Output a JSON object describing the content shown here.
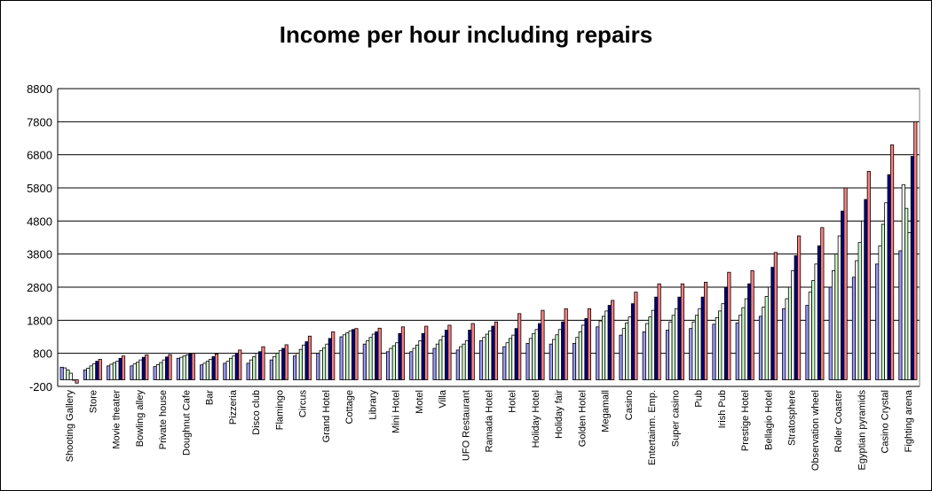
{
  "chart_data": {
    "type": "bar",
    "title": "Income per hour including repairs",
    "xlabel": "",
    "ylabel": "",
    "ylim": [
      -200,
      8800
    ],
    "yticks": [
      -200,
      800,
      1800,
      2800,
      3800,
      4800,
      5800,
      6800,
      7800,
      8800
    ],
    "grid": true,
    "legend": "none",
    "series_colors": [
      "#9999ff",
      "#ffffff",
      "#ccffcc",
      "#ffffff",
      "#000080",
      "#ff8080"
    ],
    "categories": [
      "Shooting Gallery",
      "Store",
      "Movie theater",
      "Bowling alley",
      "Private house",
      "Doughnut Cafe",
      "Bar",
      "Pizzeria",
      "Disco club",
      "Flamingo",
      "Circus",
      "Grand Hotel",
      "Cottage",
      "Library",
      "Mini Hotel",
      "Motel",
      "Villa",
      "UFO Restaurant",
      "Ramada Hotel",
      "Hotel",
      "Holiday Hotel",
      "Holiday fair",
      "Golden Hotel",
      "Megamall",
      "Casino",
      "Entertainm. Emp.",
      "Super casino",
      "Pub",
      "Irish Pub",
      "Prestige Hotel",
      "Bellagio Hotel",
      "Stratosphere",
      "Observation wheel",
      "Roller Coaster",
      "Egyptian pyramids",
      "Casino Crystal",
      "Fighting arena"
    ],
    "series": [
      {
        "values": [
          380,
          300,
          420,
          420,
          400,
          650,
          450,
          500,
          500,
          600,
          720,
          800,
          1300,
          1080,
          850,
          850,
          950,
          900,
          1180,
          1000,
          1100,
          1080,
          1100,
          1600,
          1350,
          1450,
          1500,
          1550,
          1680,
          1720,
          1920,
          2150,
          2250,
          2800,
          3100,
          3500,
          3900
        ]
      },
      {
        "values": [
          360,
          350,
          470,
          480,
          460,
          680,
          500,
          560,
          600,
          700,
          800,
          880,
          1360,
          1180,
          950,
          950,
          1080,
          1000,
          1280,
          1120,
          1250,
          1220,
          1280,
          1780,
          1550,
          1700,
          1750,
          1750,
          1880,
          1950,
          2200,
          2450,
          2650,
          3300,
          3600,
          4050,
          5900
        ]
      },
      {
        "values": [
          300,
          420,
          520,
          530,
          520,
          720,
          560,
          650,
          700,
          800,
          920,
          960,
          1420,
          1280,
          1030,
          1050,
          1200,
          1080,
          1380,
          1250,
          1400,
          1360,
          1450,
          1920,
          1720,
          1900,
          1950,
          1950,
          2080,
          2180,
          2520,
          2800,
          3000,
          3800,
          4150,
          4700,
          5180
        ]
      },
      {
        "values": [
          200,
          480,
          560,
          600,
          600,
          750,
          620,
          720,
          800,
          880,
          1050,
          1080,
          1480,
          1380,
          1120,
          1180,
          1320,
          1180,
          1480,
          1350,
          1520,
          1520,
          1650,
          2080,
          1900,
          2100,
          2150,
          2150,
          2300,
          2450,
          2800,
          3300,
          3500,
          4350,
          4800,
          5350,
          4450
        ]
      },
      {
        "values": [
          0,
          560,
          650,
          680,
          690,
          780,
          700,
          800,
          850,
          950,
          1150,
          1250,
          1520,
          1450,
          1400,
          1400,
          1500,
          1500,
          1620,
          1550,
          1700,
          1750,
          1850,
          2250,
          2300,
          2500,
          2500,
          2500,
          2800,
          2900,
          3400,
          3750,
          4050,
          5100,
          5450,
          6200,
          6750
        ]
      },
      {
        "values": [
          -100,
          620,
          720,
          750,
          760,
          800,
          780,
          900,
          1000,
          1060,
          1320,
          1450,
          1550,
          1560,
          1600,
          1620,
          1650,
          1700,
          1750,
          2000,
          2100,
          2150,
          2150,
          2400,
          2650,
          2900,
          2900,
          2950,
          3250,
          3300,
          3850,
          4350,
          4600,
          5800,
          6300,
          7100,
          7800
        ]
      }
    ]
  }
}
